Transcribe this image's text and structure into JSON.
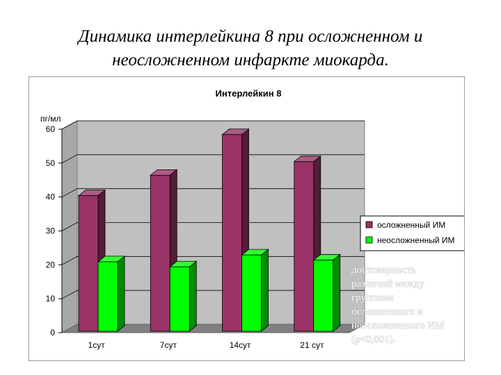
{
  "slide_title_line1": "Динамика интерлейкина 8 при осложненном и",
  "slide_title_line2": "неосложненном инфаркте миокарда.",
  "note_lines": [
    "достоверность",
    "различий между",
    "группами",
    "осложненного и",
    "неосложненного ИМ",
    "(р<0,001)."
  ],
  "colors": {
    "complicated": "#993366",
    "uncomplicated": "#00ff00",
    "wall": "#c0c0c0",
    "floor": "#808080"
  },
  "chart_data": {
    "type": "bar",
    "title": "Интерлейкин 8",
    "ylabel": "пг/мл",
    "xlabel": "",
    "categories": [
      "1сут",
      "7сут",
      "14сут",
      "21 сут"
    ],
    "series": [
      {
        "name": "осложненный ИМ",
        "values": [
          40,
          46,
          58,
          50
        ]
      },
      {
        "name": "неосложненный ИМ",
        "values": [
          20.5,
          19,
          22.5,
          21
        ]
      }
    ],
    "ylim": [
      0,
      60
    ],
    "yticks": [
      0,
      10,
      20,
      30,
      40,
      50,
      60
    ],
    "grid": true,
    "legend_position": "right"
  }
}
